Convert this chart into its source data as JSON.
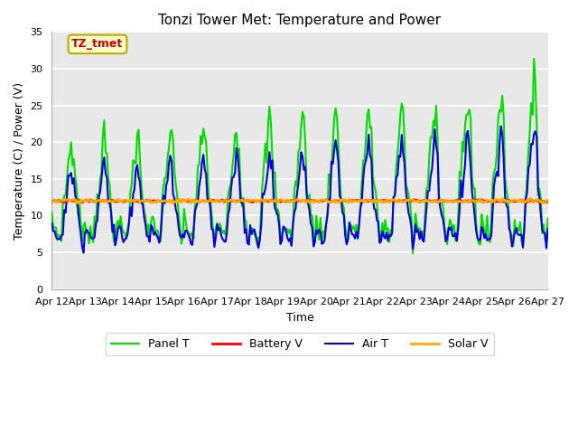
{
  "title": "Tonzi Tower Met: Temperature and Power",
  "xlabel": "Time",
  "ylabel": "Temperature (C) / Power (V)",
  "annotation_text": "TZ_tmet",
  "annotation_bbox_facecolor": "#ffffcc",
  "annotation_bbox_edgecolor": "#bbaa00",
  "annotation_text_color": "#cc0000",
  "ylim": [
    0,
    35
  ],
  "xlim": [
    0,
    360
  ],
  "xtick_positions": [
    0,
    24,
    48,
    72,
    96,
    120,
    144,
    168,
    192,
    216,
    240,
    264,
    288,
    312,
    336,
    360
  ],
  "xtick_labels": [
    "Apr 12",
    "Apr 13",
    "Apr 14",
    "Apr 15",
    "Apr 16",
    "Apr 17",
    "Apr 18",
    "Apr 19",
    "Apr 20",
    "Apr 21",
    "Apr 22",
    "Apr 23",
    "Apr 24",
    "Apr 25",
    "Apr 26",
    "Apr 27"
  ],
  "ytick_positions": [
    0,
    5,
    10,
    15,
    20,
    25,
    30,
    35
  ],
  "panel_t_color": "#00dd00",
  "battery_v_color": "#ff0000",
  "air_t_color": "#0000dd",
  "solar_v_color": "#ffaa00",
  "plot_bg_color": "#e8e8e8",
  "fig_bg_color": "#ffffff",
  "grid_color": "#ffffff",
  "legend_labels": [
    "Panel T",
    "Battery V",
    "Air T",
    "Solar V"
  ],
  "panel_t_linewidth": 1.5,
  "battery_v_linewidth": 2.0,
  "air_t_linewidth": 1.5,
  "solar_v_linewidth": 2.0,
  "font_size_ticks": 8,
  "font_size_labels": 9,
  "font_size_title": 11
}
